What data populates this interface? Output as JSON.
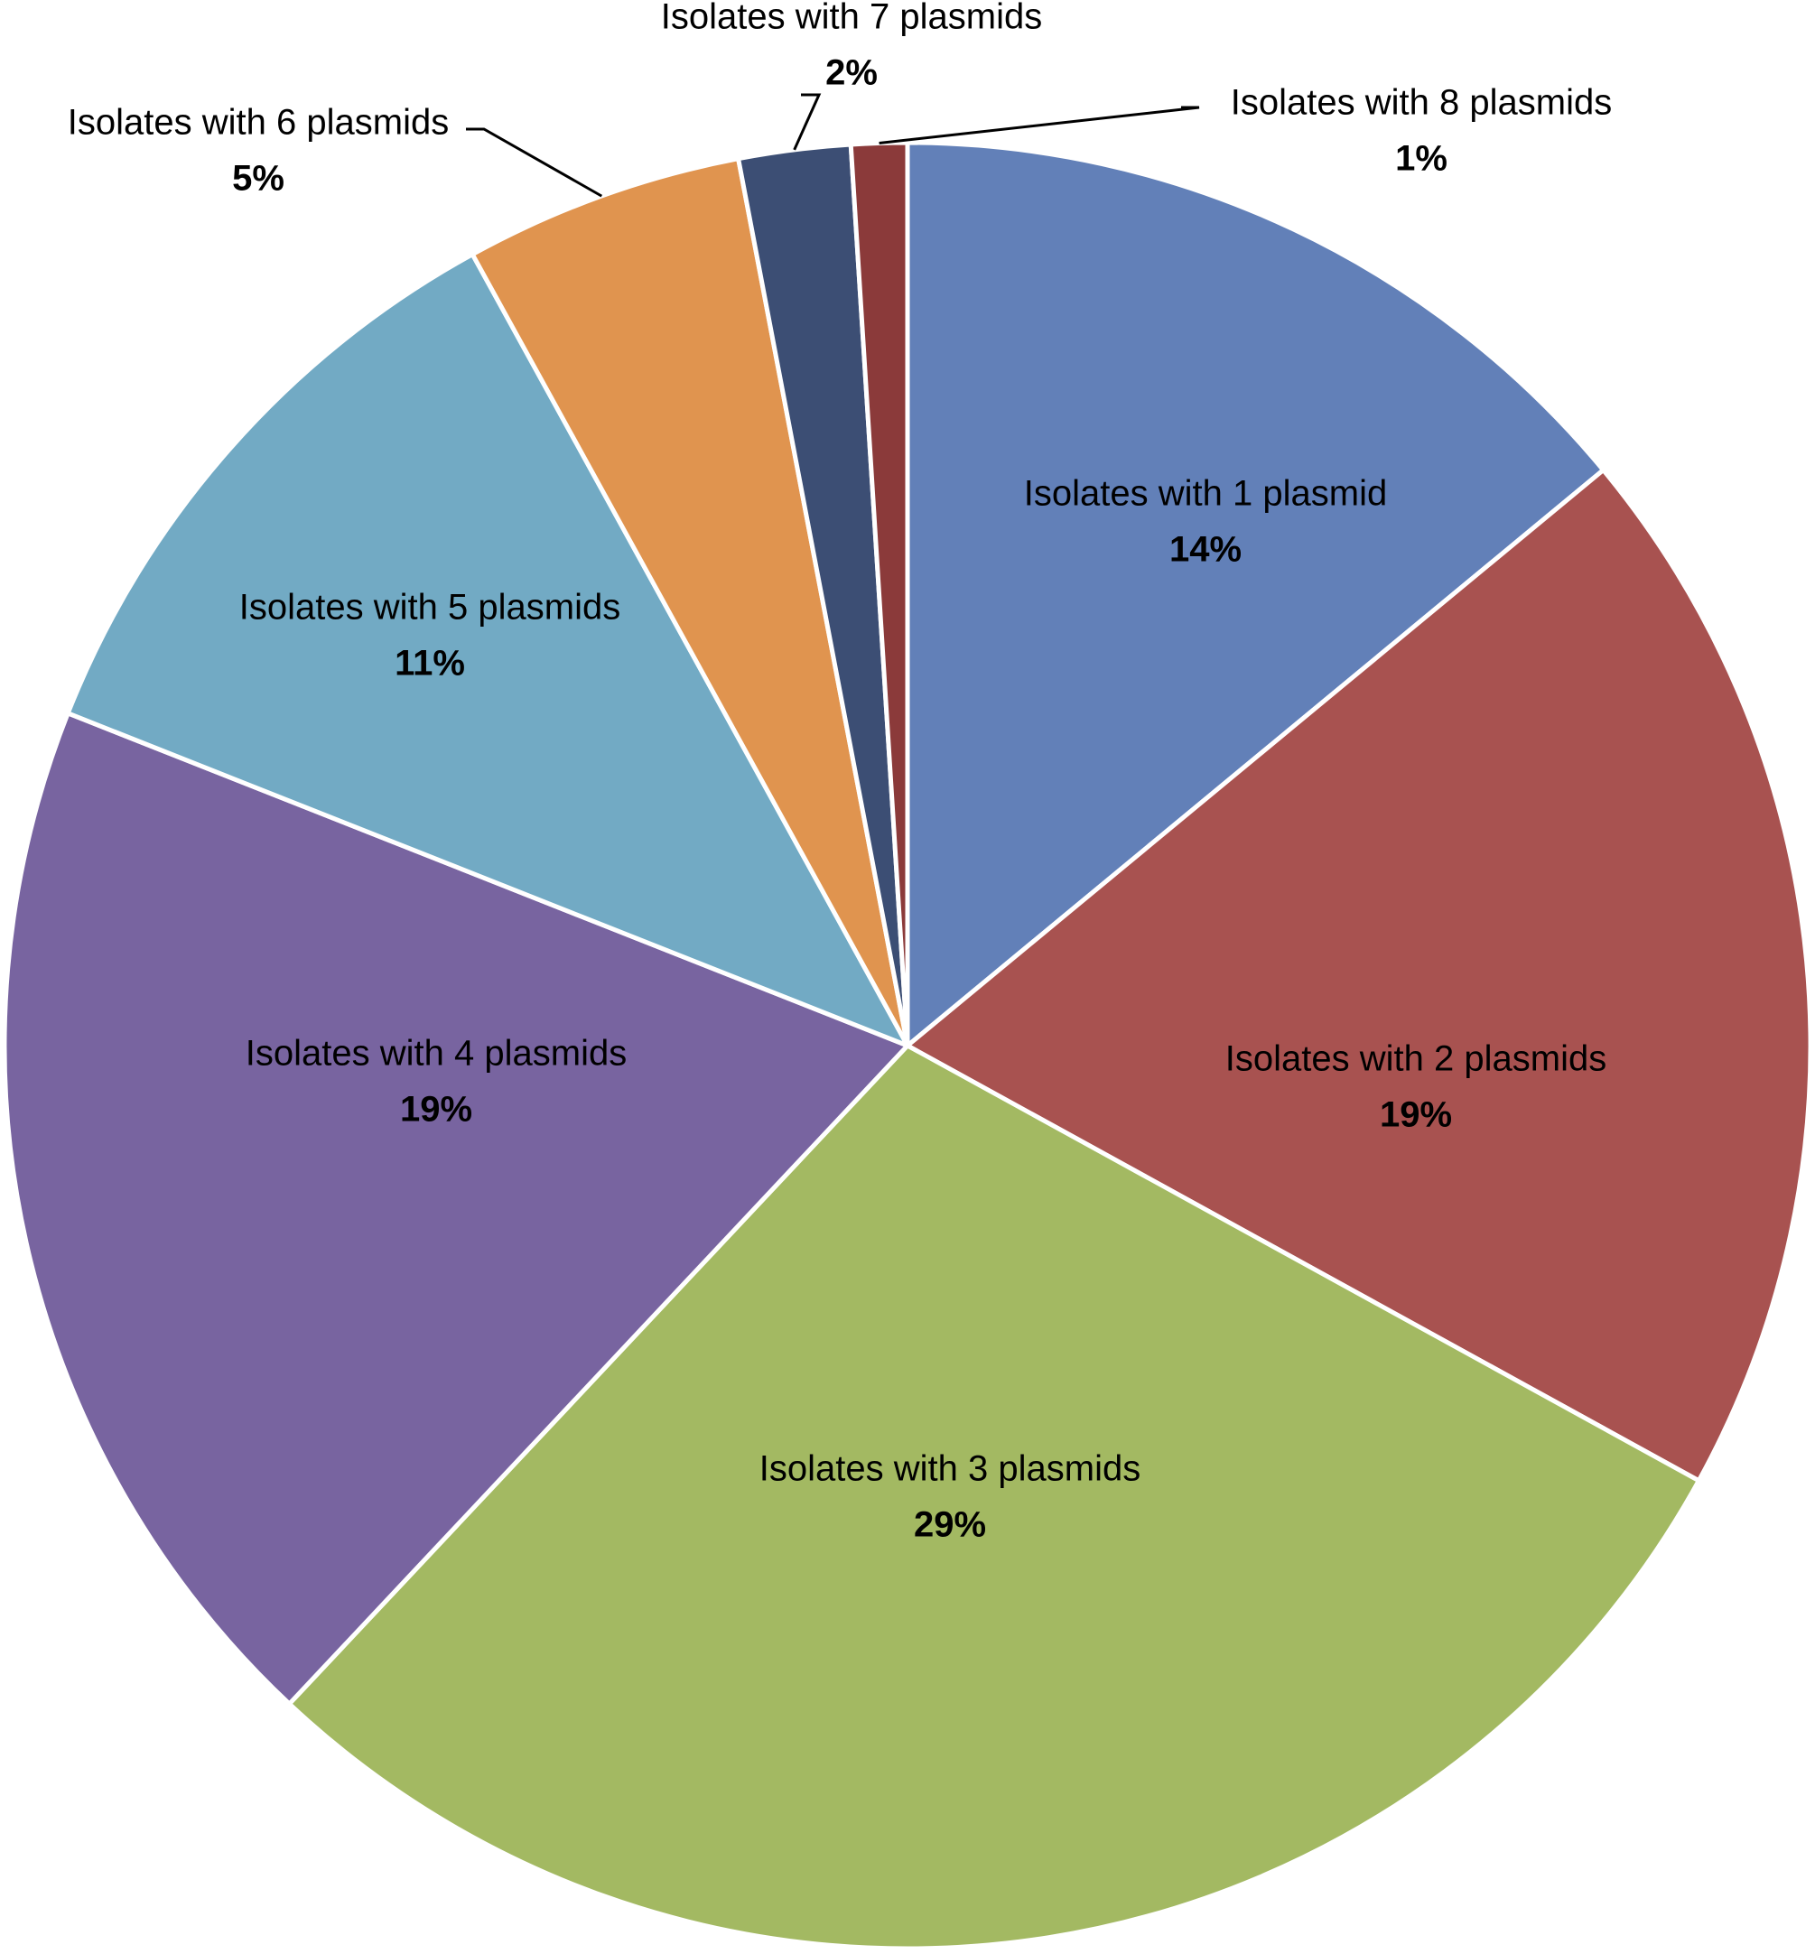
{
  "chart_data": {
    "type": "pie",
    "categories": [
      "Isolates with 1 plasmid",
      "Isolates with 2 plasmids",
      "Isolates with 3 plasmids",
      "Isolates with 4 plasmids",
      "Isolates with 5 plasmids",
      "Isolates with 6 plasmids",
      "Isolates with 7 plasmids",
      "Isolates with 8 plasmids"
    ],
    "values": [
      14,
      19,
      29,
      19,
      11,
      5,
      2,
      1
    ],
    "value_labels": [
      "14%",
      "19%",
      "29%",
      "19%",
      "11%",
      "5%",
      "2%",
      "1%"
    ],
    "colors": [
      "#6280b8",
      "#a85250",
      "#a3b962",
      "#7864a0",
      "#72aac4",
      "#e0944f",
      "#3c4e74",
      "#8b3a3a"
    ]
  }
}
